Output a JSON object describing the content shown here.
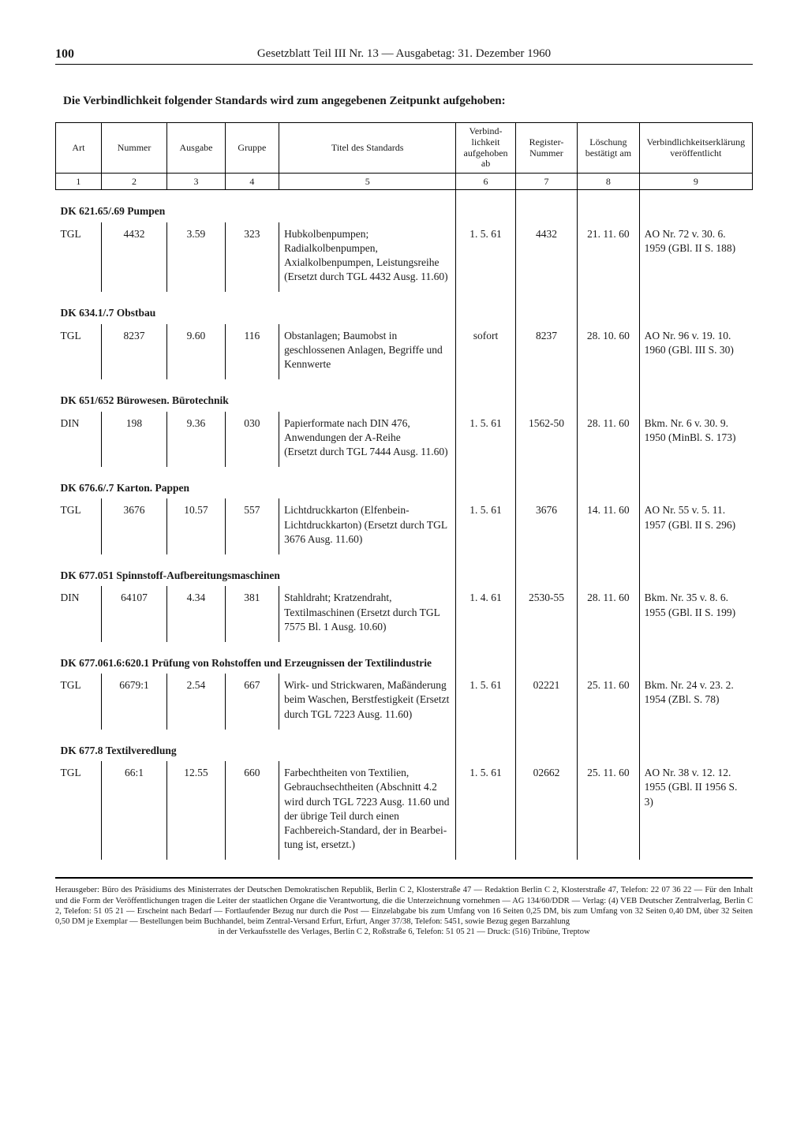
{
  "header": {
    "page_number": "100",
    "running_title": "Gesetzblatt Teil III Nr. 13 — Ausgabetag: 31. Dezember 1960"
  },
  "section_title": "Die Verbindlichkeit folgender Standards wird zum angegebenen Zeitpunkt aufgehoben:",
  "columns": {
    "c1": "Art",
    "c2": "Nummer",
    "c3": "Ausgabe",
    "c4": "Gruppe",
    "c5": "Titel des Standards",
    "c6": "Verbind­lichkeit aufge­hoben ab",
    "c7": "Register-Nummer",
    "c8": "Löschung bestätigt am",
    "c9": "Verbindlichkeits­erklärung veröffentlicht",
    "n1": "1",
    "n2": "2",
    "n3": "3",
    "n4": "4",
    "n5": "5",
    "n6": "6",
    "n7": "7",
    "n8": "8",
    "n9": "9"
  },
  "groups": [
    {
      "heading": "DK 621.65/.69 Pumpen",
      "rows": [
        {
          "art": "TGL",
          "nummer": "4432",
          "ausgabe": "3.59",
          "gruppe": "323",
          "titel": "Hubkolbenpumpen; Radialkolbenpumpen, Axialkolbenpumpen, Leistungsreihe (Ersetzt durch TGL 4432 Ausg. 11.60)",
          "verb": "1. 5. 61",
          "reg": "4432",
          "loe": "21. 11. 60",
          "erkl": "AO Nr. 72 v. 30. 6. 1959 (GBl. II S. 188)"
        }
      ]
    },
    {
      "heading": "DK 634.1/.7 Obstbau",
      "rows": [
        {
          "art": "TGL",
          "nummer": "8237",
          "ausgabe": "9.60",
          "gruppe": "116",
          "titel": "Obstanlagen; Baumobst in geschlossenen Anlagen, Begriffe und Kennwerte",
          "verb": "sofort",
          "reg": "8237",
          "loe": "28. 10. 60",
          "erkl": "AO Nr. 96 v. 19. 10. 1960 (GBl. III S. 30)"
        }
      ]
    },
    {
      "heading": "DK 651/652 Bürowesen. Bürotechnik",
      "rows": [
        {
          "art": "DIN",
          "nummer": "198",
          "ausgabe": "9.36",
          "gruppe": "030",
          "titel": "Papierformate nach DIN 476, Anwendungen der A-Reihe\n(Ersetzt durch TGL 7444 Ausg. 11.60)",
          "verb": "1. 5. 61",
          "reg": "1562-50",
          "loe": "28. 11. 60",
          "erkl": "Bkm. Nr. 6 v. 30. 9. 1950 (MinBl. S. 173)"
        }
      ]
    },
    {
      "heading": "DK 676.6/.7 Karton. Pappen",
      "rows": [
        {
          "art": "TGL",
          "nummer": "3676",
          "ausgabe": "10.57",
          "gruppe": "557",
          "titel": "Lichtdruckkarton (Elfen­bein-Lichtdruckkarton) (Ersetzt durch TGL 3676 Ausg. 11.60)",
          "verb": "1. 5. 61",
          "reg": "3676",
          "loe": "14. 11. 60",
          "erkl": "AO Nr. 55 v. 5. 11. 1957 (GBl. II S. 296)"
        }
      ]
    },
    {
      "heading": "DK 677.051 Spinnstoff-Aufbereitungsmaschinen",
      "rows": [
        {
          "art": "DIN",
          "nummer": "64107",
          "ausgabe": "4.34",
          "gruppe": "381",
          "titel": "Stahldraht; Kratzendraht, Textilmaschinen (Ersetzt durch TGL 7575 Bl. 1 Ausg. 10.60)",
          "verb": "1. 4. 61",
          "reg": "2530-55",
          "loe": "28. 11. 60",
          "erkl": "Bkm. Nr. 35 v. 8. 6. 1955 (GBl. II S. 199)"
        }
      ]
    },
    {
      "heading": "DK 677.061.6:620.1 Prüfung von Rohstoffen und Erzeugnissen der Textilindustrie",
      "rows": [
        {
          "art": "TGL",
          "nummer": "6679:1",
          "ausgabe": "2.54",
          "gruppe": "667",
          "titel": "Wirk- und Strickwaren, Maßänderung beim Waschen, Berstfestigkeit (Ersetzt durch TGL 7223 Ausg. 11.60)",
          "verb": "1. 5. 61",
          "reg": "02221",
          "loe": "25. 11. 60",
          "erkl": "Bkm. Nr. 24 v. 23. 2. 1954 (ZBl. S. 78)"
        }
      ]
    },
    {
      "heading": "DK 677.8 Textilveredlung",
      "rows": [
        {
          "art": "TGL",
          "nummer": "66:1",
          "ausgabe": "12.55",
          "gruppe": "660",
          "titel": "Farbechtheiten von Textilien, Gebrauchsechtheiten (Abschnitt 4.2 wird durch TGL 7223 Ausg. 11.60 und der übrige Teil durch einen Fachbereich-Standard, der in Bearbei­tung ist, ersetzt.)",
          "verb": "1. 5. 61",
          "reg": "02662",
          "loe": "25. 11. 60",
          "erkl": "AO Nr. 38 v. 12. 12. 1955 (GBl. II 1956 S. 3)"
        }
      ]
    }
  ],
  "imprint": {
    "l1": "Herausgeber: Büro des Präsidiums des Ministerrates der Deutschen Demokratischen Republik, Berlin C 2, Klosterstraße 47 — Redaktion Berlin C 2, Klosterstraße 47, Telefon: 22 07 36 22 — Für den Inhalt und die Form der Veröffentlichungen tragen die Leiter der staatlichen Organe die Verantwortung, die die Unterzeichnung vornehmen — AG 134/60/DDR — Verlag: (4) VEB Deutscher Zentralverlag, Berlin C 2, Telefon: 51 05 21 — Erscheint nach Bedarf — Fortlaufender Bezug nur durch die Post — Einzelab­gabe bis zum Umfang von 16 Seiten 0,25 DM, bis zum Umfang von 32 Seiten 0,40 DM, über 32 Seiten 0,50 DM je Exemplar — Bestellungen beim Buchhandel, beim Zentral-Versand Erfurt, Erfurt, Anger 37/38, Telefon: 5451, sowie Bezug gegen Barzahlung",
    "l2": "in der Verkaufsstelle des Verlages, Berlin C 2, Roßstraße 6, Telefon: 51 05 21 — Druck: (516) Tribüne, Treptow"
  }
}
